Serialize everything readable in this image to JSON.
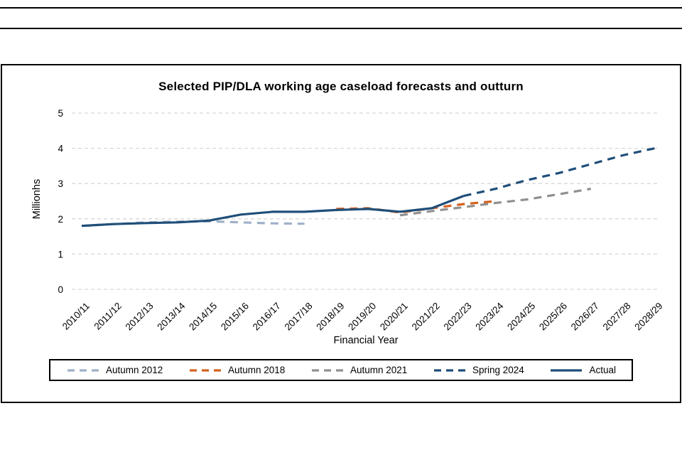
{
  "page": {
    "decorations": [
      "top-horizontal-rule",
      "header-horizontal-rule"
    ]
  },
  "chart_data": {
    "type": "line",
    "title": "Selected PIP/DLA working age caseload forecasts and outturn",
    "xlabel": "Financial Year",
    "ylabel": "Millionhs",
    "ylim": [
      0,
      5
    ],
    "yticks": [
      0,
      1,
      2,
      3,
      4,
      5
    ],
    "grid": "horizontal-dashed",
    "grid_color": "#d7d7d7",
    "legend_position": "bottom-boxed",
    "categories": [
      "2010/11",
      "2011/12",
      "2012/13",
      "2013/14",
      "2014/15",
      "2015/16",
      "2016/17",
      "2017/18",
      "2018/19",
      "2019/20",
      "2020/21",
      "2021/22",
      "2022/23",
      "2023/24",
      "2024/25",
      "2025/26",
      "2026/27",
      "2027/28",
      "2028/29"
    ],
    "series": [
      {
        "name": "Autumn 2012",
        "color": "#9fb1c8",
        "style": "dashed",
        "values": [
          1.8,
          1.85,
          1.9,
          1.92,
          1.93,
          1.9,
          1.87,
          1.86,
          null,
          null,
          null,
          null,
          null,
          null,
          null,
          null,
          null,
          null,
          null
        ]
      },
      {
        "name": "Autumn 2018",
        "color": "#d4611f",
        "style": "dashed",
        "values": [
          null,
          null,
          null,
          null,
          null,
          null,
          null,
          null,
          2.28,
          2.3,
          2.18,
          2.3,
          2.42,
          2.5,
          null,
          null,
          null,
          null,
          null
        ]
      },
      {
        "name": "Autumn 2021",
        "color": "#909090",
        "style": "dashed",
        "values": [
          null,
          null,
          null,
          null,
          null,
          null,
          null,
          null,
          null,
          null,
          2.1,
          2.22,
          2.33,
          2.45,
          2.55,
          2.7,
          2.85,
          null,
          null
        ]
      },
      {
        "name": "Spring 2024",
        "color": "#1f4e79",
        "style": "dashed",
        "values": [
          null,
          null,
          null,
          null,
          null,
          null,
          null,
          null,
          null,
          null,
          null,
          null,
          2.65,
          2.85,
          3.1,
          3.3,
          3.55,
          3.8,
          4.0
        ]
      },
      {
        "name": "Actual",
        "color": "#1f4e79",
        "style": "solid",
        "values": [
          1.8,
          1.85,
          1.88,
          1.9,
          1.95,
          2.12,
          2.2,
          2.2,
          2.25,
          2.28,
          2.2,
          2.3,
          2.65,
          null,
          null,
          null,
          null,
          null,
          null
        ]
      }
    ]
  }
}
